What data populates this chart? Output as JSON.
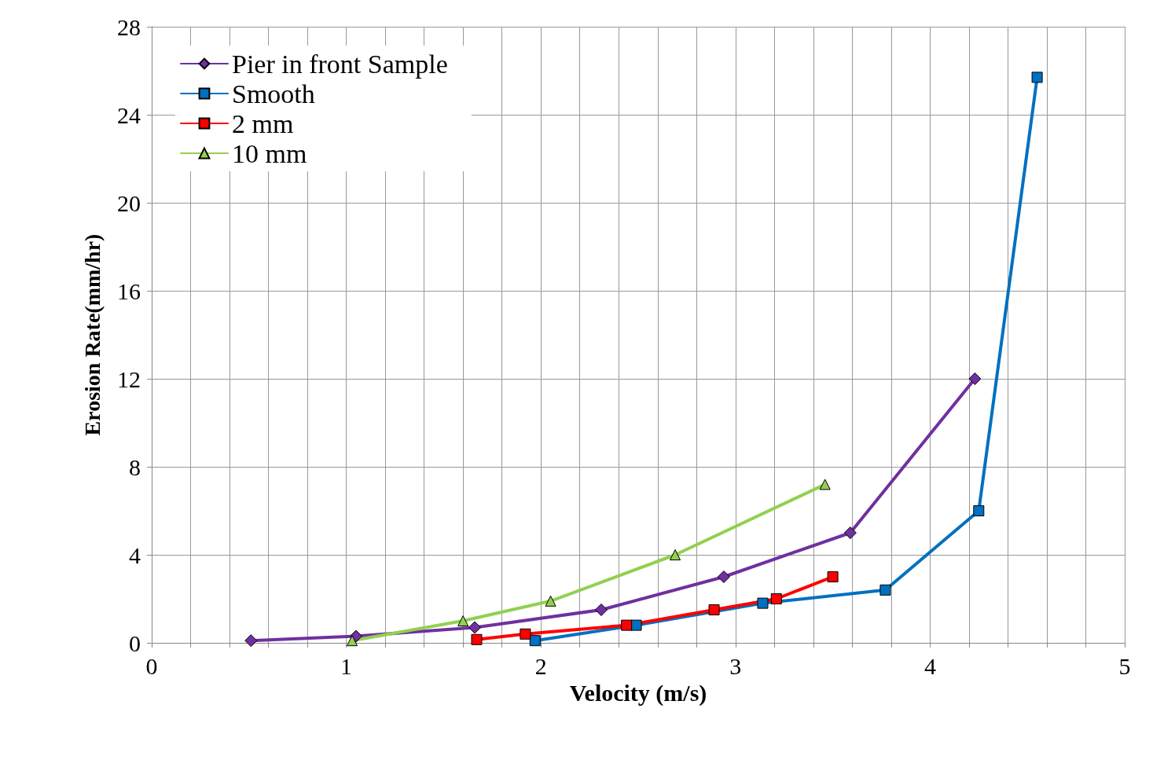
{
  "chart_data": {
    "type": "line",
    "xlabel": "Velocity (m/s)",
    "ylabel": "Erosion Rate(mm/hr)",
    "xlim": [
      0,
      5
    ],
    "ylim": [
      0,
      28
    ],
    "xticks": [
      0,
      {
        "value": 0.2,
        "label": null
      },
      {
        "value": 0.4,
        "label": null
      },
      {
        "value": 0.6,
        "label": null
      },
      {
        "value": 0.8,
        "label": null
      },
      1,
      {
        "value": 1.2,
        "label": null
      },
      {
        "value": 1.4,
        "label": null
      },
      {
        "value": 1.6,
        "label": null
      },
      {
        "value": 1.8,
        "label": null
      },
      2,
      {
        "value": 2.2,
        "label": null
      },
      {
        "value": 2.4,
        "label": null
      },
      {
        "value": 2.6,
        "label": null
      },
      {
        "value": 2.8,
        "label": null
      },
      3,
      {
        "value": 3.2,
        "label": null
      },
      {
        "value": 3.4,
        "label": null
      },
      {
        "value": 3.6,
        "label": null
      },
      {
        "value": 3.8,
        "label": null
      },
      4,
      {
        "value": 4.2,
        "label": null
      },
      {
        "value": 4.4,
        "label": null
      },
      {
        "value": 4.6,
        "label": null
      },
      {
        "value": 4.8,
        "label": null
      },
      5
    ],
    "yticks": [
      0,
      4,
      8,
      12,
      16,
      20,
      24,
      28
    ],
    "grid": true,
    "legend": "top left",
    "line_style": "solid",
    "series": [
      {
        "name": "Pier in front Sample",
        "color": "#7030a0",
        "marker": "diamond",
        "x": [
          0.51,
          1.05,
          1.66,
          2.31,
          2.94,
          3.59,
          4.23
        ],
        "values": [
          0.1,
          0.3,
          0.7,
          1.5,
          3.0,
          5.0,
          12.0
        ]
      },
      {
        "name": "Smooth",
        "color": "#0070c0",
        "marker": "square",
        "x": [
          1.97,
          2.49,
          3.14,
          3.77,
          4.25,
          4.55
        ],
        "values": [
          0.1,
          0.8,
          1.8,
          2.4,
          6.0,
          25.7
        ]
      },
      {
        "name": "2 mm",
        "color": "#ff0000",
        "marker": "square",
        "x": [
          1.67,
          1.92,
          2.44,
          2.89,
          3.21,
          3.5
        ],
        "values": [
          0.15,
          0.4,
          0.8,
          1.5,
          2.0,
          3.0
        ]
      },
      {
        "name": "10 mm",
        "color": "#92d050",
        "marker": "triangle",
        "x": [
          1.03,
          1.6,
          2.05,
          2.69,
          3.46
        ],
        "values": [
          0.1,
          1.0,
          1.9,
          4.0,
          7.2
        ]
      }
    ]
  }
}
